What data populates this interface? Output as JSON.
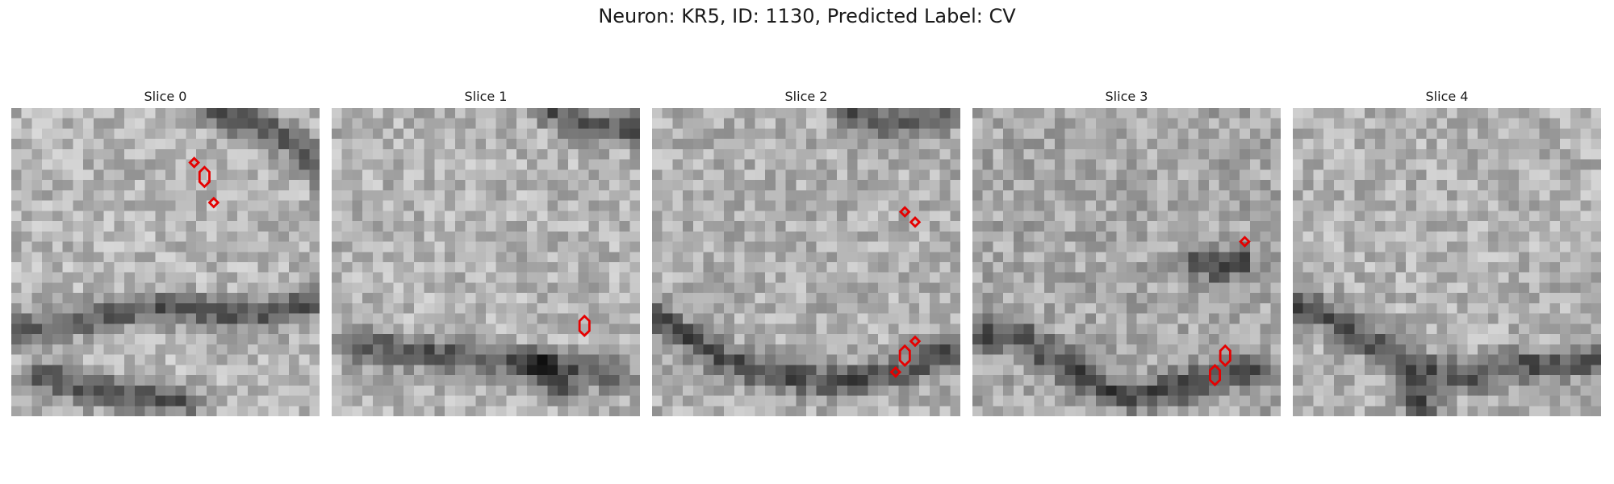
{
  "figure": {
    "title": "Neuron: KR5, ID: 1130, Predicted Label: CV"
  },
  "grid_size": 30,
  "marker_color": "#e60000",
  "slices": [
    {
      "title": "Slice 0",
      "seed": 11,
      "markers": [
        {
          "x": 17.8,
          "y": 5.3,
          "shape": "diamond"
        },
        {
          "x": 18.8,
          "y": 6.7,
          "shape": "hexagon"
        },
        {
          "x": 19.7,
          "y": 9.2,
          "shape": "diamond"
        }
      ]
    },
    {
      "title": "Slice 1",
      "seed": 23,
      "markers": [
        {
          "x": 24.6,
          "y": 21.2,
          "shape": "hexagon"
        }
      ]
    },
    {
      "title": "Slice 2",
      "seed": 37,
      "markers": [
        {
          "x": 24.6,
          "y": 10.1,
          "shape": "diamond"
        },
        {
          "x": 25.6,
          "y": 11.1,
          "shape": "diamond"
        },
        {
          "x": 25.6,
          "y": 22.7,
          "shape": "diamond"
        },
        {
          "x": 24.6,
          "y": 24.1,
          "shape": "hexagon"
        },
        {
          "x": 23.7,
          "y": 25.7,
          "shape": "diamond"
        }
      ]
    },
    {
      "title": "Slice 3",
      "seed": 41,
      "markers": [
        {
          "x": 26.5,
          "y": 13.0,
          "shape": "diamond"
        },
        {
          "x": 24.6,
          "y": 24.1,
          "shape": "hexagon"
        },
        {
          "x": 23.6,
          "y": 26.0,
          "shape": "hexagon"
        }
      ]
    },
    {
      "title": "Slice 4",
      "seed": 53,
      "markers": []
    }
  ]
}
